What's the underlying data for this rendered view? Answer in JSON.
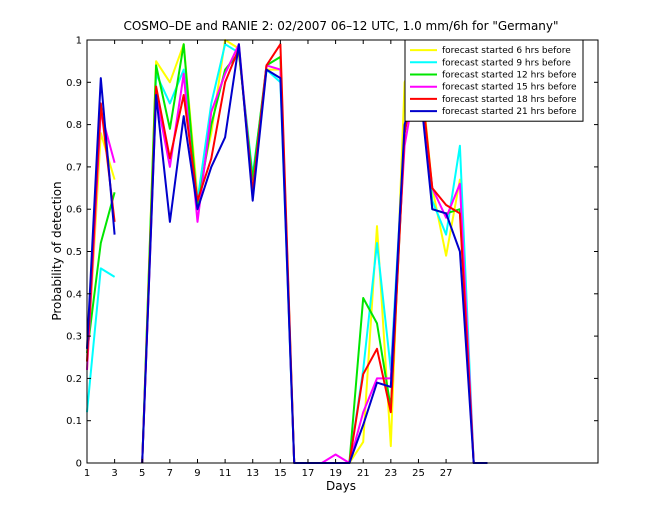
{
  "chart_data": {
    "type": "line",
    "title": "COSMO–DE and RANIE 2: 02/2007 06–12 UTC, 1.0 mm/6h for \"Germany\"",
    "xlabel": "Days",
    "ylabel": "Probability of detection",
    "xlim": [
      1,
      38
    ],
    "ylim": [
      0,
      1
    ],
    "grid": false,
    "legend_position": "top-right",
    "xticks": [
      1,
      3,
      5,
      7,
      9,
      11,
      13,
      15,
      17,
      19,
      21,
      23,
      25,
      27
    ],
    "xtick_labels": [
      "1",
      "3",
      "5",
      "7",
      "9",
      "11",
      "13",
      "15",
      "17",
      "19",
      "21",
      "23",
      "25",
      "27"
    ],
    "yticks": [
      0,
      0.1,
      0.2,
      0.3,
      0.4,
      0.5,
      0.6,
      0.7,
      0.8,
      0.9,
      1
    ],
    "ytick_labels": [
      "0",
      "0.1",
      "0.2",
      "0.3",
      "0.4",
      "0.5",
      "0.6",
      "0.7",
      "0.8",
      "0.9",
      "1"
    ],
    "x": [
      1,
      2,
      3,
      4,
      5,
      6,
      7,
      8,
      9,
      10,
      11,
      12,
      13,
      14,
      15,
      16,
      17,
      18,
      19,
      20,
      21,
      22,
      23,
      24,
      25,
      26,
      27,
      28,
      29,
      30
    ],
    "series": [
      {
        "name": "forecast started 6 hrs before",
        "color": "#ffff00",
        "values": [
          0.22,
          0.78,
          0.67,
          null,
          0.0,
          0.95,
          0.9,
          0.99,
          0.63,
          0.78,
          1.0,
          0.98,
          0.65,
          0.93,
          0.93,
          0.0,
          0.0,
          0.0,
          0.0,
          0.0,
          0.05,
          0.56,
          0.04,
          0.9,
          0.98,
          0.65,
          0.49,
          0.67,
          0.0,
          0.0
        ]
      },
      {
        "name": "forecast started 9 hrs before",
        "color": "#00ffff",
        "values": [
          0.12,
          0.46,
          0.44,
          null,
          0.0,
          0.92,
          0.85,
          0.93,
          0.62,
          0.85,
          0.99,
          0.97,
          0.68,
          0.93,
          0.9,
          0.0,
          0.0,
          0.0,
          0.0,
          0.0,
          0.22,
          0.52,
          0.22,
          0.78,
          0.97,
          0.62,
          0.54,
          0.75,
          0.0,
          0.0
        ]
      },
      {
        "name": "forecast started 12 hrs before",
        "color": "#00e600",
        "values": [
          0.26,
          0.52,
          0.64,
          null,
          0.0,
          0.94,
          0.79,
          0.99,
          0.6,
          0.8,
          0.93,
          0.97,
          0.67,
          0.94,
          0.96,
          0.0,
          0.0,
          0.0,
          0.0,
          0.0,
          0.39,
          0.33,
          0.13,
          0.78,
          0.99,
          0.6,
          0.59,
          0.6,
          0.0,
          0.0
        ]
      },
      {
        "name": "forecast started 15 hrs before",
        "color": "#ff00ff",
        "values": [
          0.22,
          0.83,
          0.71,
          null,
          0.0,
          0.87,
          0.7,
          0.92,
          0.57,
          0.83,
          0.92,
          0.99,
          0.64,
          0.94,
          0.93,
          0.0,
          0.0,
          0.0,
          0.02,
          0.0,
          0.12,
          0.2,
          0.2,
          0.75,
          0.94,
          0.65,
          0.58,
          0.66,
          0.0,
          0.0
        ]
      },
      {
        "name": "forecast started 18 hrs before",
        "color": "#ff0000",
        "values": [
          0.24,
          0.85,
          0.57,
          null,
          0.0,
          0.89,
          0.72,
          0.87,
          0.62,
          0.72,
          0.9,
          0.98,
          0.64,
          0.94,
          0.99,
          0.0,
          0.0,
          0.0,
          0.0,
          0.0,
          0.21,
          0.27,
          0.12,
          0.78,
          0.96,
          0.65,
          0.61,
          0.59,
          0.0,
          0.0
        ]
      },
      {
        "name": "forecast started 21 hrs before",
        "color": "#0000cc",
        "values": [
          0.27,
          0.91,
          0.54,
          null,
          0.0,
          0.87,
          0.57,
          0.82,
          0.6,
          0.7,
          0.77,
          0.99,
          0.62,
          0.93,
          0.91,
          0.0,
          0.0,
          0.0,
          0.0,
          0.0,
          0.09,
          0.19,
          0.18,
          0.8,
          0.92,
          0.6,
          0.59,
          0.5,
          0.0,
          0.0
        ]
      }
    ]
  }
}
